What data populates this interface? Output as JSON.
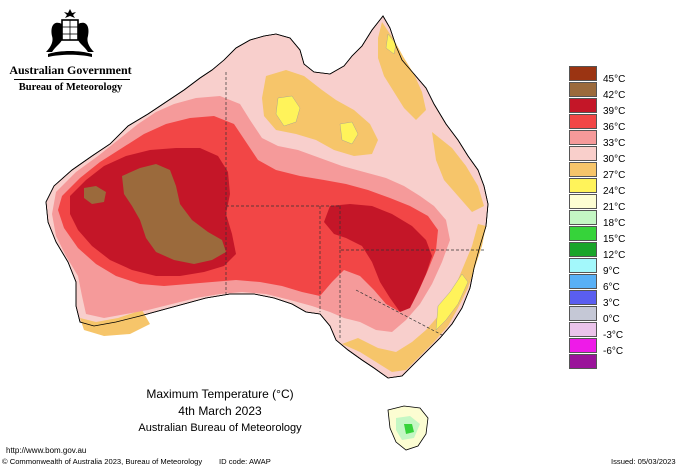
{
  "header": {
    "government": "Australian Government",
    "bureau": "Bureau of Meteorology"
  },
  "icons": {
    "crest": "commonwealth-coat-of-arms-icon"
  },
  "map": {
    "subject": "Maximum Temperature",
    "region": "Australia",
    "colors": {
      "ocean": "#ffffff",
      "c45": "#8b3a14",
      "c42": "#9b6a3c",
      "c39": "#c41628",
      "c36": "#e83a3a",
      "c33": "#f39a9a",
      "c30": "#f8cfcc",
      "c27": "#f6c56a",
      "c24": "#ffef5e",
      "c21": "#fcfbd0",
      "c18": "#2fd23a"
    }
  },
  "legend": {
    "items": [
      {
        "label": "45°C",
        "color": "#9b3412"
      },
      {
        "label": "42°C",
        "color": "#9b6a3c"
      },
      {
        "label": "39°C",
        "color": "#c41628"
      },
      {
        "label": "36°C",
        "color": "#f24646"
      },
      {
        "label": "33°C",
        "color": "#f59a9a"
      },
      {
        "label": "30°C",
        "color": "#f9cfcb"
      },
      {
        "label": "27°C",
        "color": "#f6c56a"
      },
      {
        "label": "24°C",
        "color": "#fff35a"
      },
      {
        "label": "21°C",
        "color": "#fcfdd2"
      },
      {
        "label": "18°C",
        "color": "#c4f7c4"
      },
      {
        "label": "15°C",
        "color": "#36d33a"
      },
      {
        "label": "12°C",
        "color": "#1aa52a"
      },
      {
        "label": "9°C",
        "color": "#a3f8fb"
      },
      {
        "label": "6°C",
        "color": "#58b0f6"
      },
      {
        "label": "3°C",
        "color": "#5a5ef0"
      },
      {
        "label": "0°C",
        "color": "#c5c8d6"
      },
      {
        "label": "-3°C",
        "color": "#eac3ea"
      },
      {
        "label": "-6°C",
        "color": "#ee1be8"
      },
      {
        "label": "",
        "color": "#9a149a"
      }
    ]
  },
  "caption": {
    "title": "Maximum Temperature (°C)",
    "date": "4th March 2023",
    "source": "Australian Bureau of Meteorology"
  },
  "footer": {
    "url": "http://www.bom.gov.au",
    "copyright": "© Commonwealth of Australia 2023, Bureau of Meteorology",
    "id_code": "ID code: AWAP",
    "issued": "Issued: 05/03/2023"
  }
}
